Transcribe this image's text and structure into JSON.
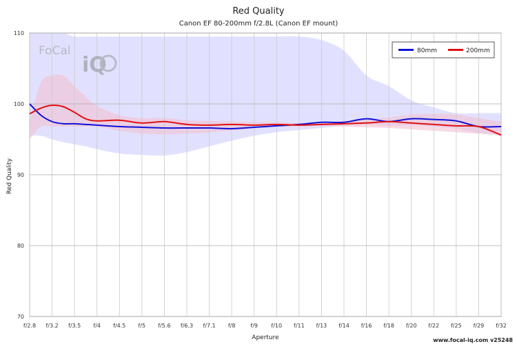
{
  "chart_data": {
    "type": "line",
    "title": "Red Quality",
    "subtitle": "Canon EF 80-200mm f/2.8L (Canon EF mount)",
    "xlabel": "Aperture",
    "ylabel": "Red Quality",
    "ylim": [
      70,
      110
    ],
    "yticks": [
      70,
      80,
      90,
      100,
      110
    ],
    "x_categories": [
      "f/2.8",
      "f/3.2",
      "f/3.5",
      "f/4",
      "f/4.5",
      "f/5",
      "f/5.6",
      "f/6.3",
      "f/7.1",
      "f/8",
      "f/9",
      "f/10",
      "f/11",
      "f/13",
      "f/14",
      "f/16",
      "f/18",
      "f/20",
      "f/22",
      "f/25",
      "f/29",
      "f/32"
    ],
    "grid": true,
    "legend_position": "top-right",
    "series": [
      {
        "name": "80mm",
        "color": "#1010d8",
        "band_color": "#c8c8ff",
        "x": [
          0,
          0.5,
          1,
          1.5,
          2,
          2.5,
          3,
          4,
          5,
          6,
          7,
          8,
          9,
          10,
          11,
          12,
          13,
          14,
          15,
          16,
          17,
          18,
          19,
          20,
          21
        ],
        "values": [
          100.0,
          98.4,
          97.5,
          97.2,
          97.2,
          97.1,
          97.0,
          96.8,
          96.7,
          96.6,
          96.6,
          96.6,
          96.5,
          96.7,
          96.9,
          97.1,
          97.4,
          97.4,
          97.9,
          97.5,
          97.9,
          97.8,
          97.6,
          96.8,
          96.8
        ],
        "upper": [
          110,
          110,
          110,
          110,
          109.5,
          109.5,
          109.5,
          109.5,
          109.5,
          109.5,
          109.5,
          109.5,
          109.5,
          109.5,
          109.5,
          109.5,
          109,
          107.5,
          104,
          102.5,
          100.5,
          99.5,
          98.7,
          98.7,
          98.7
        ],
        "lower": [
          95.5,
          95.5,
          95.0,
          94.6,
          94.3,
          94.0,
          93.6,
          93.0,
          92.8,
          92.7,
          93.2,
          94.0,
          94.8,
          95.5,
          96.0,
          96.3,
          96.6,
          96.9,
          97.1,
          96.9,
          97.0,
          96.8,
          96.5,
          95.9,
          95.7
        ]
      },
      {
        "name": "200mm",
        "color": "#e01010",
        "band_color": "#f2c2d2",
        "x": [
          0,
          0.5,
          1,
          1.5,
          2,
          2.5,
          3,
          4,
          5,
          6,
          7,
          8,
          9,
          10,
          11,
          12,
          13,
          14,
          15,
          16,
          17,
          18,
          19,
          20,
          21
        ],
        "values": [
          98.6,
          99.4,
          99.8,
          99.6,
          98.8,
          97.9,
          97.6,
          97.7,
          97.3,
          97.5,
          97.1,
          97.0,
          97.1,
          97.0,
          97.1,
          97.0,
          97.1,
          97.2,
          97.3,
          97.5,
          97.3,
          97.1,
          96.9,
          96.8,
          95.6
        ],
        "upper": [
          97.5,
          103.0,
          104.0,
          104.0,
          102.5,
          101.0,
          99.7,
          98.4,
          98.0,
          98.0,
          97.7,
          97.6,
          97.5,
          97.4,
          97.4,
          97.3,
          97.4,
          97.6,
          97.8,
          98.1,
          98.5,
          98.6,
          98.5,
          98.0,
          97.5
        ],
        "lower": [
          95.0,
          96.8,
          96.8,
          96.8,
          96.8,
          96.8,
          96.8,
          96.2,
          95.8,
          95.7,
          95.8,
          96.0,
          96.2,
          96.6,
          96.8,
          96.8,
          96.9,
          96.8,
          96.7,
          96.6,
          96.4,
          96.2,
          96.0,
          95.8,
          95.5
        ]
      }
    ]
  },
  "logo": {
    "text_left": "FoCal",
    "text_right": "iQ"
  },
  "credit": "www.focal-iq.com  v25248"
}
